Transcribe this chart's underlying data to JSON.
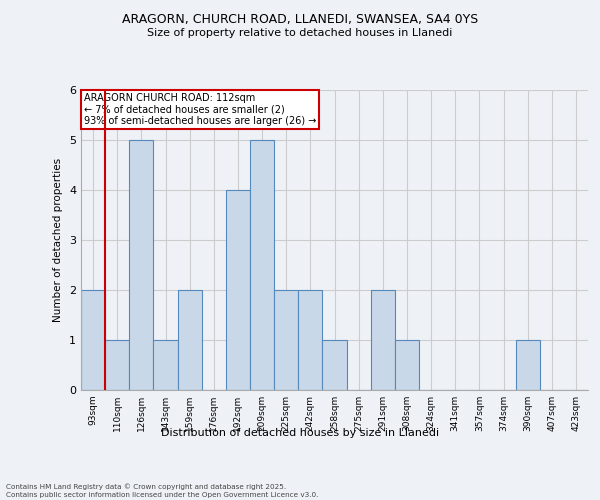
{
  "title_line1": "ARAGORN, CHURCH ROAD, LLANEDI, SWANSEA, SA4 0YS",
  "title_line2": "Size of property relative to detached houses in Llanedi",
  "xlabel": "Distribution of detached houses by size in Llanedi",
  "ylabel": "Number of detached properties",
  "categories": [
    "93sqm",
    "110sqm",
    "126sqm",
    "143sqm",
    "159sqm",
    "176sqm",
    "192sqm",
    "209sqm",
    "225sqm",
    "242sqm",
    "258sqm",
    "275sqm",
    "291sqm",
    "308sqm",
    "324sqm",
    "341sqm",
    "357sqm",
    "374sqm",
    "390sqm",
    "407sqm",
    "423sqm"
  ],
  "values": [
    2,
    1,
    5,
    1,
    2,
    0,
    4,
    5,
    2,
    2,
    1,
    0,
    2,
    1,
    0,
    0,
    0,
    0,
    1,
    0,
    0
  ],
  "bar_color": "#c8d8e8",
  "bar_edge_color": "#5588bb",
  "property_line_color": "#cc0000",
  "property_line_x": 0.5,
  "annotation_title": "ARAGORN CHURCH ROAD: 112sqm",
  "annotation_line1": "← 7% of detached houses are smaller (2)",
  "annotation_line2": "93% of semi-detached houses are larger (26) →",
  "annotation_box_color": "#cc0000",
  "ylim": [
    0,
    6
  ],
  "yticks": [
    0,
    1,
    2,
    3,
    4,
    5,
    6
  ],
  "footer": "Contains HM Land Registry data © Crown copyright and database right 2025.\nContains public sector information licensed under the Open Government Licence v3.0.",
  "bg_color": "#eef2f7",
  "plot_bg_color": "#eef2f7",
  "grid_color": "#cccccc"
}
